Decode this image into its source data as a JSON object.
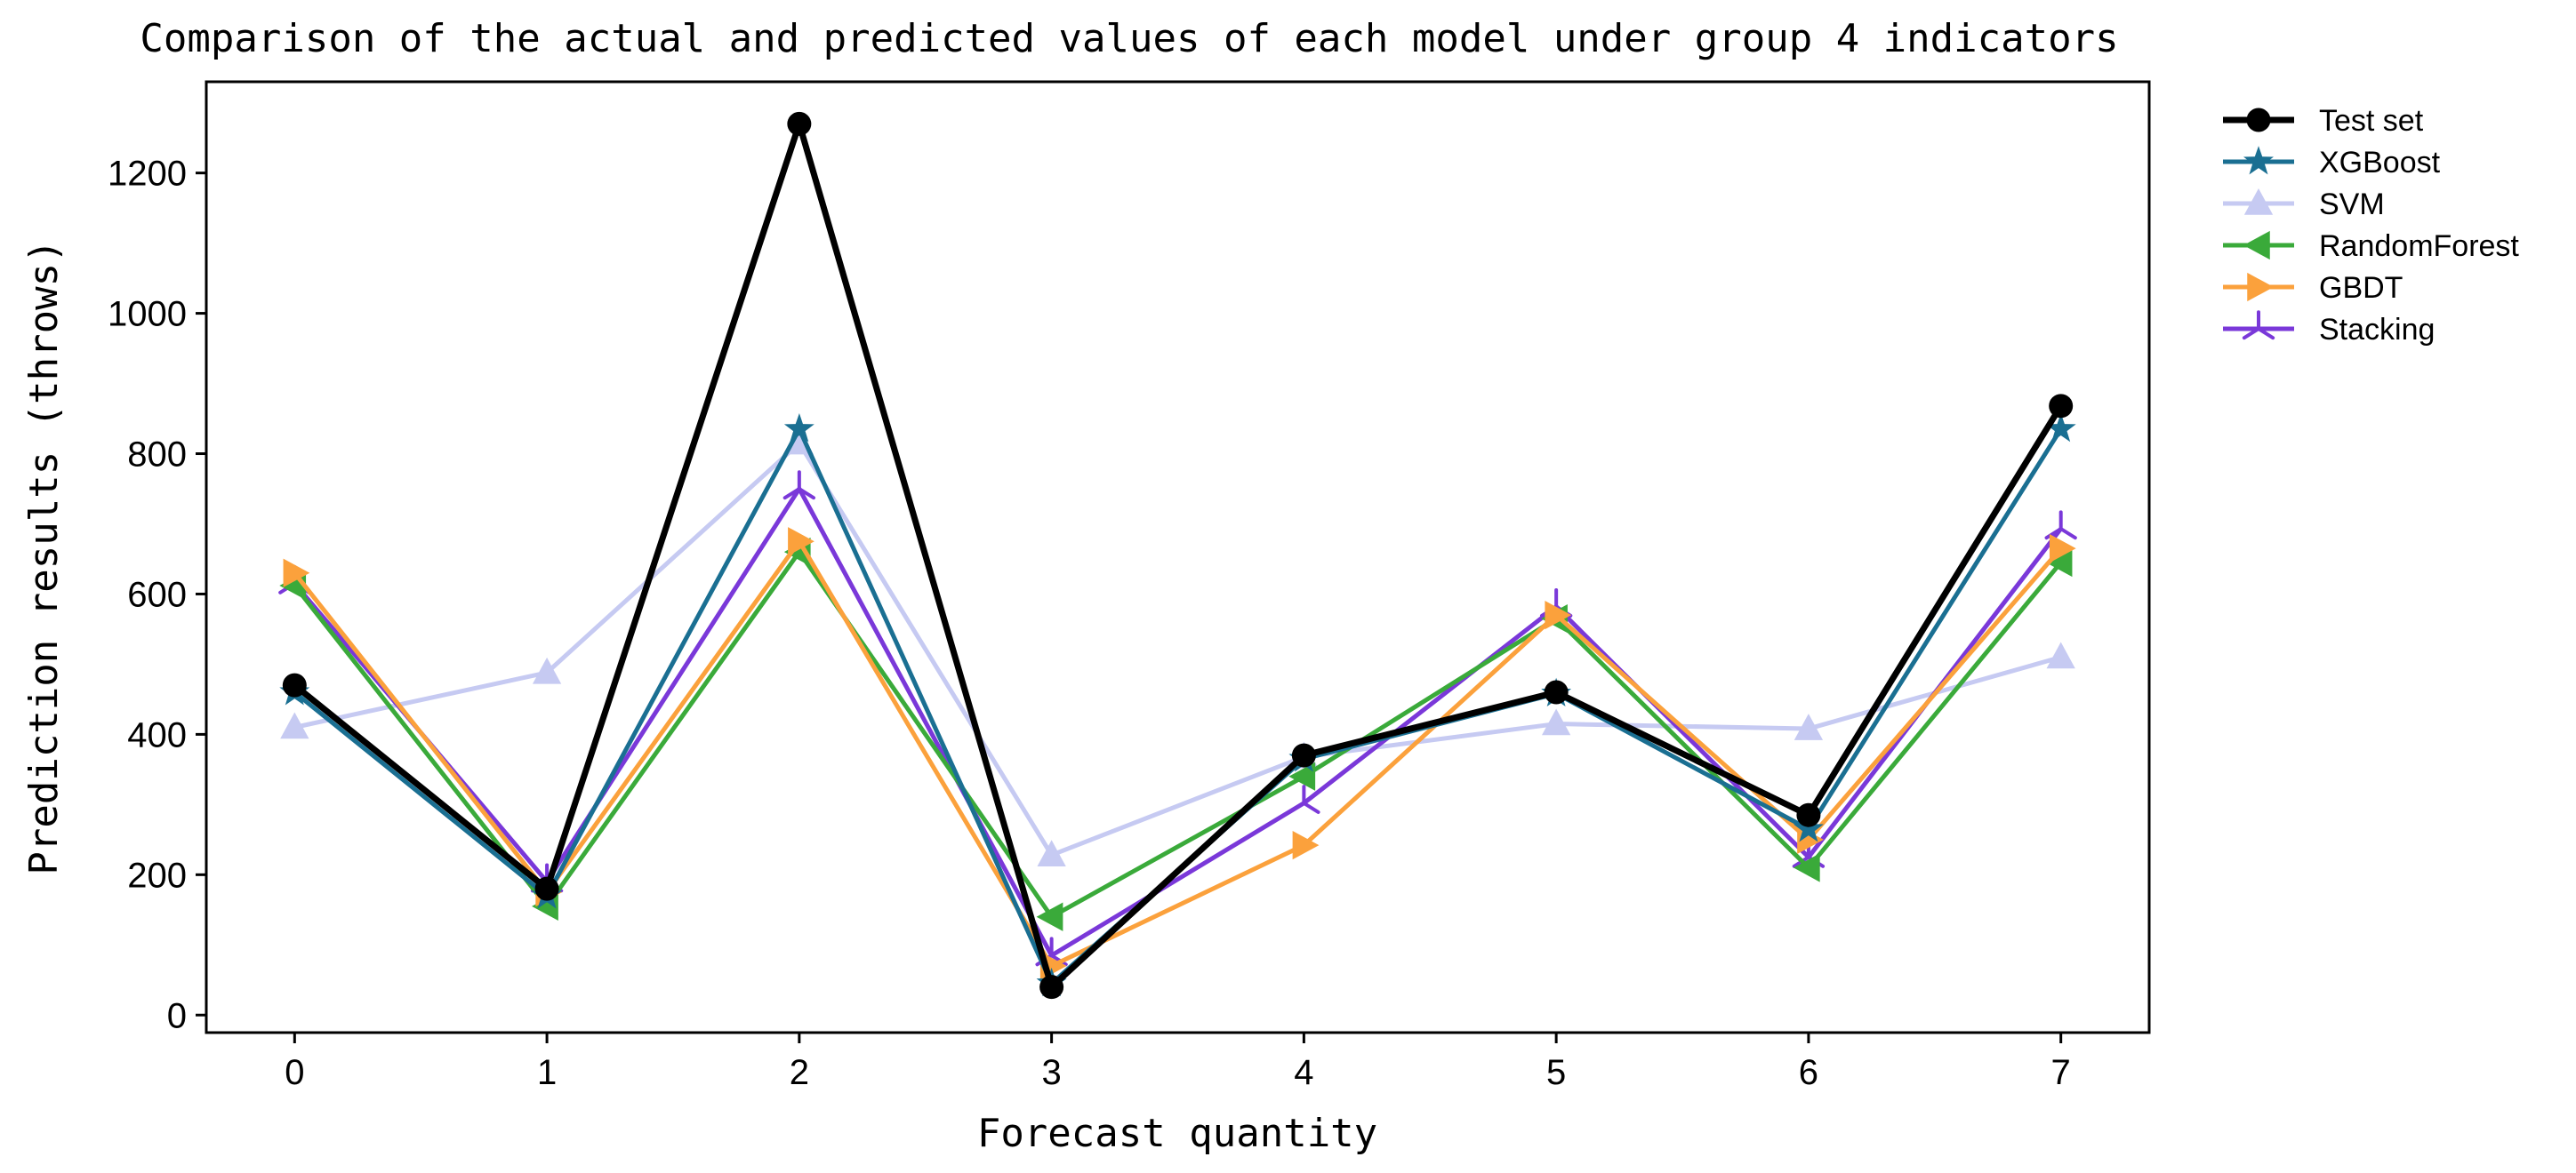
{
  "chart_data": {
    "type": "line",
    "title": "Comparison of the actual and predicted values of each model under group 4 indicators",
    "xlabel": "Forecast quantity",
    "ylabel": "Prediction results (throws)",
    "x": [
      0,
      1,
      2,
      3,
      4,
      5,
      6,
      7
    ],
    "xticks": [
      "0",
      "1",
      "2",
      "3",
      "4",
      "5",
      "6",
      "7"
    ],
    "yticks": [
      "0",
      "200",
      "400",
      "600",
      "800",
      "1000",
      "1200"
    ],
    "ytick_values": [
      0,
      200,
      400,
      600,
      800,
      1000,
      1200
    ],
    "xlim": [
      -0.35,
      7.35
    ],
    "ylim": [
      -25,
      1330
    ],
    "legend_position": "outside-right-top",
    "series": [
      {
        "name": "Test set",
        "color": "#000000",
        "marker": "circle",
        "values": [
          470,
          180,
          1270,
          40,
          370,
          460,
          285,
          868
        ]
      },
      {
        "name": "XGBoost",
        "color": "#1a6f92",
        "marker": "star",
        "values": [
          460,
          170,
          835,
          45,
          365,
          458,
          265,
          835
        ]
      },
      {
        "name": "SVM",
        "color": "#c6caf2",
        "marker": "triangle-up",
        "values": [
          410,
          488,
          815,
          228,
          368,
          415,
          408,
          510
        ]
      },
      {
        "name": "RandomForest",
        "color": "#3aaa3a",
        "marker": "triangle-left",
        "values": [
          612,
          155,
          660,
          140,
          340,
          565,
          210,
          645
        ]
      },
      {
        "name": "GBDT",
        "color": "#fba13c",
        "marker": "triangle-right",
        "values": [
          630,
          175,
          675,
          70,
          242,
          570,
          250,
          665
        ]
      },
      {
        "name": "Stacking",
        "color": "#7a38d9",
        "marker": "tri-up",
        "values": [
          615,
          190,
          750,
          85,
          302,
          582,
          225,
          693
        ]
      }
    ]
  }
}
